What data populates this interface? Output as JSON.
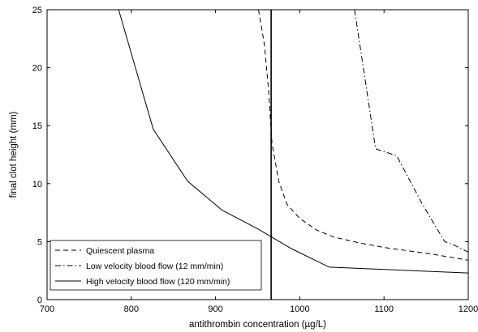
{
  "chart_data": {
    "type": "line",
    "xlabel": "antithrombin concentration (µg/L)",
    "ylabel": "final clot height (mm)",
    "xlim": [
      700,
      1200
    ],
    "ylim": [
      0,
      25
    ],
    "xticks": [
      700,
      800,
      900,
      1000,
      1100,
      1200
    ],
    "yticks": [
      0,
      5,
      10,
      15,
      20,
      25
    ],
    "grid": false,
    "legend_position": "bottom-left",
    "vertical_line": {
      "x": 966
    },
    "series": [
      {
        "name": "Quiescent plasma",
        "style": "dashed",
        "color": "#000000",
        "points": [
          [
            951,
            25
          ],
          [
            958,
            22
          ],
          [
            963,
            18
          ],
          [
            967,
            13.5
          ],
          [
            975,
            10.2
          ],
          [
            985,
            8.2
          ],
          [
            1000,
            7.0
          ],
          [
            1020,
            6.0
          ],
          [
            1040,
            5.4
          ],
          [
            1070,
            4.9
          ],
          [
            1100,
            4.5
          ],
          [
            1150,
            4.0
          ],
          [
            1200,
            3.4
          ]
        ]
      },
      {
        "name": "Low velocity blood flow (12 mm/min)",
        "style": "dashdot",
        "color": "#000000",
        "points": [
          [
            1065,
            25
          ],
          [
            1090,
            13.0
          ],
          [
            1115,
            12.4
          ],
          [
            1145,
            8.3
          ],
          [
            1172,
            5.0
          ],
          [
            1183,
            4.7
          ],
          [
            1200,
            4.1
          ]
        ]
      },
      {
        "name": "High velocity blood flow (120 mm/min)",
        "style": "solid",
        "color": "#000000",
        "points": [
          [
            785,
            25
          ],
          [
            826,
            14.7
          ],
          [
            867,
            10.2
          ],
          [
            908,
            7.7
          ],
          [
            950,
            6.1
          ],
          [
            990,
            4.4
          ],
          [
            1035,
            2.8
          ],
          [
            1200,
            2.3
          ]
        ]
      }
    ]
  }
}
